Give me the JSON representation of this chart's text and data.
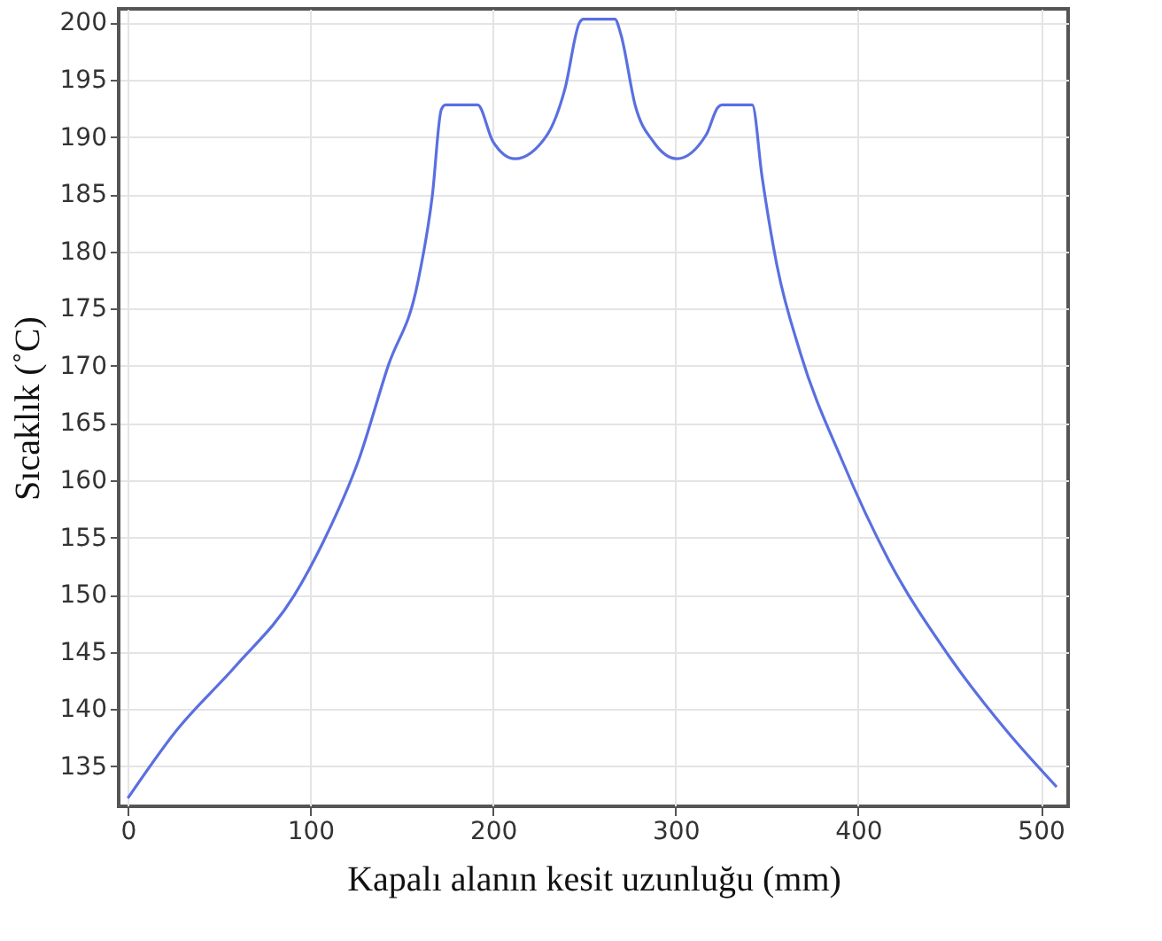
{
  "chart_data": {
    "type": "line",
    "xlabel": "Kapalı alanın kesit uzunluğu (mm)",
    "ylabel": "Sıcaklık (˚C)",
    "xlim": [
      -5,
      515
    ],
    "xticks": [
      0,
      100,
      200,
      300,
      400,
      500
    ],
    "ylim": [
      131.5,
      201.2
    ],
    "yticks": [
      135,
      140,
      145,
      150,
      155,
      160,
      165,
      170,
      175,
      180,
      185,
      190,
      195,
      200
    ],
    "grid": true,
    "marker": "none",
    "line_style": "solid",
    "series": [
      {
        "color": "#5a6fe0",
        "x": [
          0,
          26.5,
          58.7,
          91,
          107,
          126.5,
          142.6,
          158.7,
          166.8,
          171.7,
          174,
          191.6,
          200,
          212,
          229.7,
          239.4,
          247.4,
          249.5,
          266.8,
          270,
          278,
          287.8,
          300.7,
          316.8,
          323.2,
          325.5,
          342,
          347.4,
          355.5,
          368.4,
          391,
          416.8,
          449,
          481.3,
          508.7
        ],
        "values": [
          132.2,
          138.1,
          143.7,
          149.9,
          154.6,
          161.8,
          170.0,
          177.2,
          184.9,
          192.4,
          192.8,
          192.8,
          189.6,
          188.1,
          190.2,
          194.2,
          200.0,
          200.3,
          200.3,
          199.0,
          192.7,
          189.6,
          188.1,
          190.2,
          192.6,
          192.8,
          192.8,
          186.5,
          178.8,
          171.1,
          161.8,
          153.0,
          144.8,
          138.1,
          133.2
        ]
      }
    ]
  }
}
